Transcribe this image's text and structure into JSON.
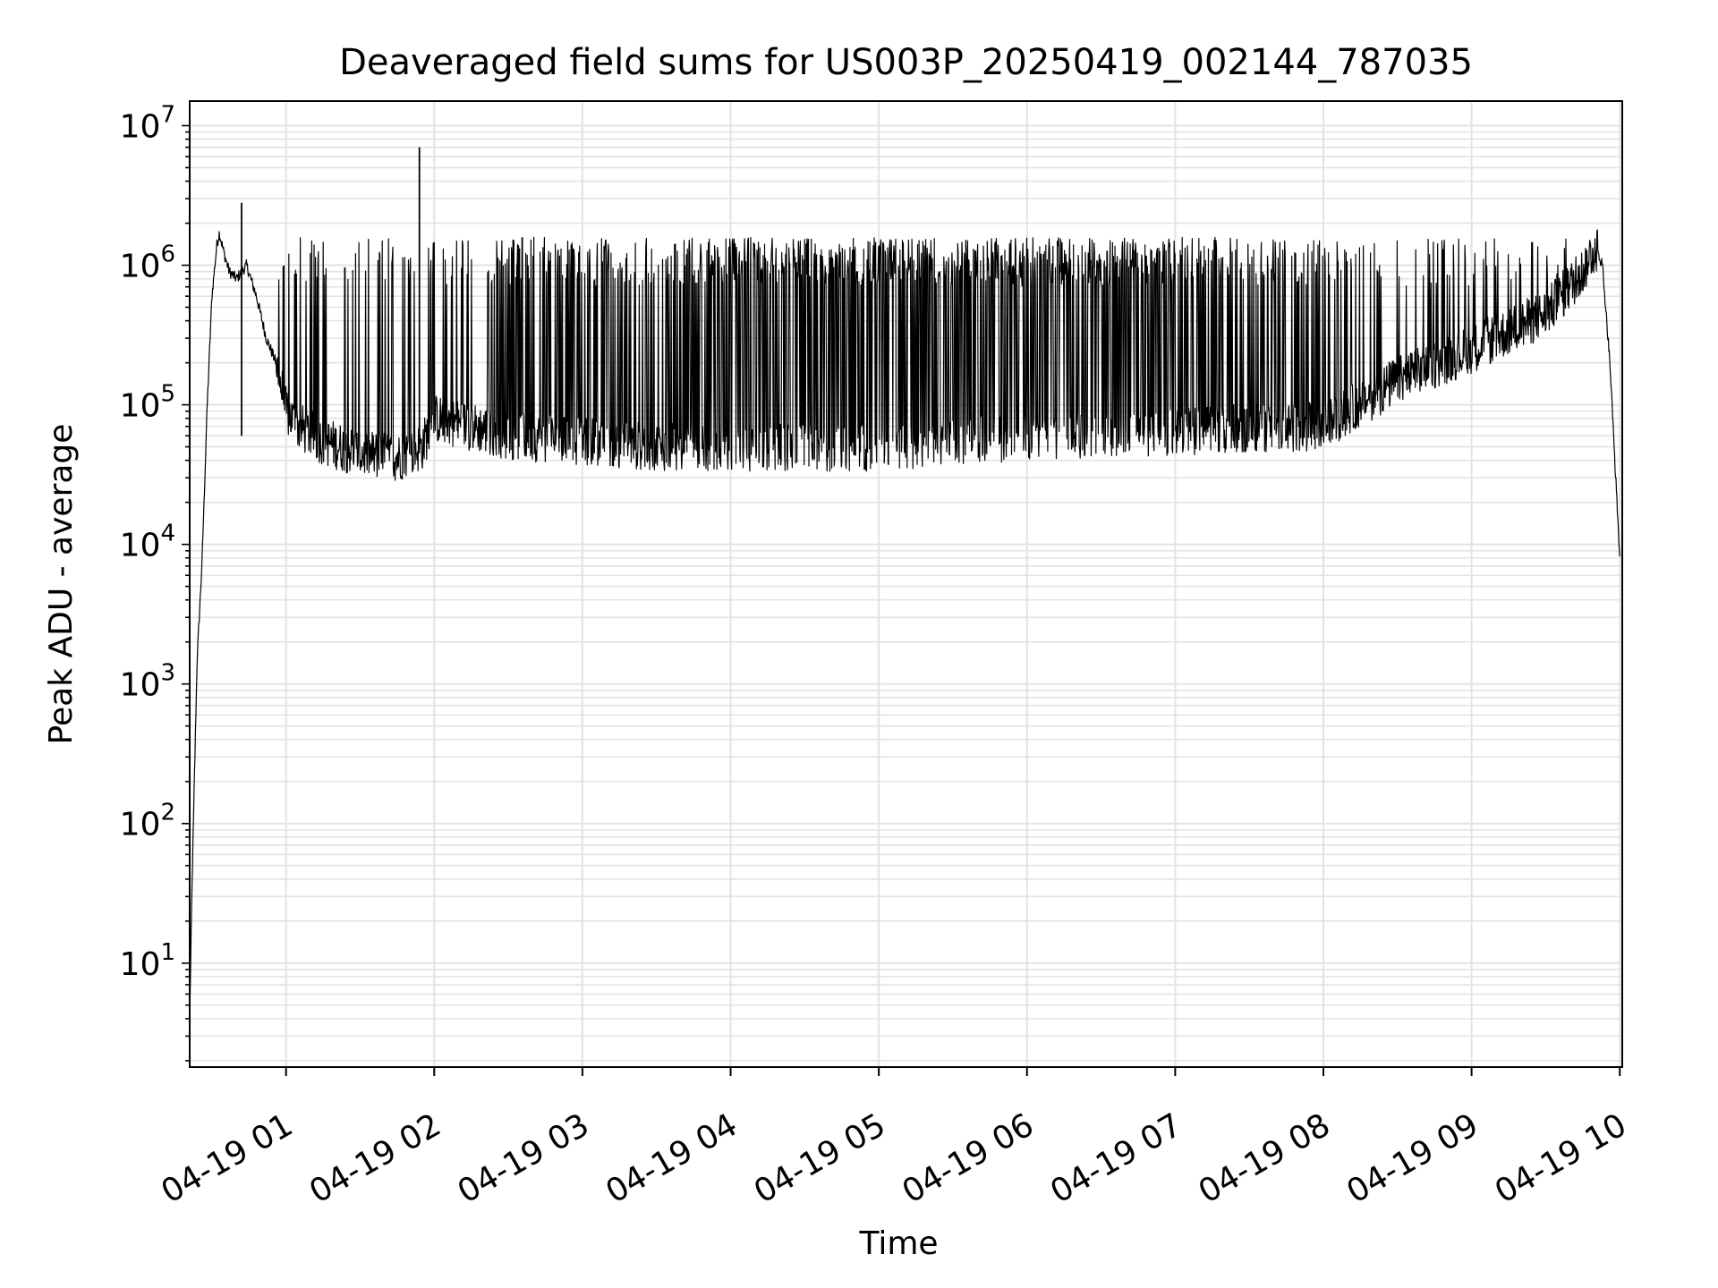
{
  "chart_data": {
    "type": "line",
    "title": "Deaveraged field sums for US003P_20250419_002144_787035",
    "xlabel": "Time",
    "ylabel": "Peak ADU - average",
    "yscale": "log",
    "grid": true,
    "x_tick_labels": [
      "04-19 01",
      "04-19 02",
      "04-19 03",
      "04-19 04",
      "04-19 05",
      "04-19 06",
      "04-19 07",
      "04-19 08",
      "04-19 09",
      "04-19 10"
    ],
    "x_ticks": [
      "2025-04-19 01:00",
      "2025-04-19 02:00",
      "2025-04-19 03:00",
      "2025-04-19 04:00",
      "2025-04-19 05:00",
      "2025-04-19 06:00",
      "2025-04-19 07:00",
      "2025-04-19 08:00",
      "2025-04-19 09:00",
      "2025-04-19 10:00"
    ],
    "xlim": [
      "2025-04-19 00:21",
      "2025-04-19 10:01"
    ],
    "y_ticks": [
      {
        "base": "10",
        "exp": "1",
        "value": 10
      },
      {
        "base": "10",
        "exp": "2",
        "value": 100
      },
      {
        "base": "10",
        "exp": "3",
        "value": 1000
      },
      {
        "base": "10",
        "exp": "4",
        "value": 10000
      },
      {
        "base": "10",
        "exp": "5",
        "value": 100000
      },
      {
        "base": "10",
        "exp": "6",
        "value": 1000000
      },
      {
        "base": "10",
        "exp": "7",
        "value": 10000000
      }
    ],
    "ylim": [
      1.8,
      15000000
    ],
    "line_color": "#000000",
    "grid_color": "#e3e3e3",
    "series": [
      {
        "points": [
          [
            "2025-04-19 00:21",
            4
          ],
          [
            "2025-04-19 00:22",
            40
          ],
          [
            "2025-04-19 00:24",
            1500
          ],
          [
            "2025-04-19 00:26",
            7500
          ],
          [
            "2025-04-19 00:27",
            25000
          ],
          [
            "2025-04-19 00:28",
            90000
          ],
          [
            "2025-04-19 00:30",
            600000
          ],
          [
            "2025-04-19 00:32",
            1400000
          ],
          [
            "2025-04-19 00:33",
            1700000
          ],
          [
            "2025-04-19 00:35",
            1200000
          ],
          [
            "2025-04-19 00:37",
            900000
          ],
          [
            "2025-04-19 00:40",
            800000
          ],
          [
            "2025-04-19 00:44",
            1000000
          ],
          [
            "2025-04-19 00:48",
            600000
          ],
          [
            "2025-04-19 00:52",
            300000
          ],
          [
            "2025-04-19 00:56",
            200000
          ],
          [
            "2025-04-19 01:00",
            90000
          ],
          [
            "2025-04-19 01:05",
            70000
          ],
          [
            "2025-04-19 01:15",
            55000
          ],
          [
            "2025-04-19 01:30",
            45000
          ],
          [
            "2025-04-19 01:45",
            42000
          ],
          [
            "2025-04-19 01:55",
            50000
          ],
          [
            "2025-04-19 02:00",
            80000
          ],
          [
            "2025-04-19 02:15",
            70000
          ],
          [
            "2025-04-19 02:30",
            60000
          ],
          [
            "2025-04-19 03:00",
            55000
          ],
          [
            "2025-04-19 03:30",
            50000
          ],
          [
            "2025-04-19 04:00",
            50000
          ],
          [
            "2025-04-19 05:00",
            50000
          ],
          [
            "2025-04-19 06:00",
            60000
          ],
          [
            "2025-04-19 07:00",
            65000
          ],
          [
            "2025-04-19 08:00",
            70000
          ],
          [
            "2025-04-19 08:30",
            150000
          ],
          [
            "2025-04-19 09:00",
            250000
          ],
          [
            "2025-04-19 09:30",
            450000
          ],
          [
            "2025-04-19 09:45",
            900000
          ],
          [
            "2025-04-19 09:50",
            1400000
          ],
          [
            "2025-04-19 09:53",
            1000000
          ],
          [
            "2025-04-19 09:56",
            200000
          ],
          [
            "2025-04-19 09:58",
            40000
          ],
          [
            "2025-04-19 10:00",
            8000
          ]
        ],
        "spikes": [
          [
            "2025-04-19 00:42",
            2800000
          ],
          [
            "2025-04-19 01:54",
            7000000
          ]
        ]
      }
    ]
  }
}
